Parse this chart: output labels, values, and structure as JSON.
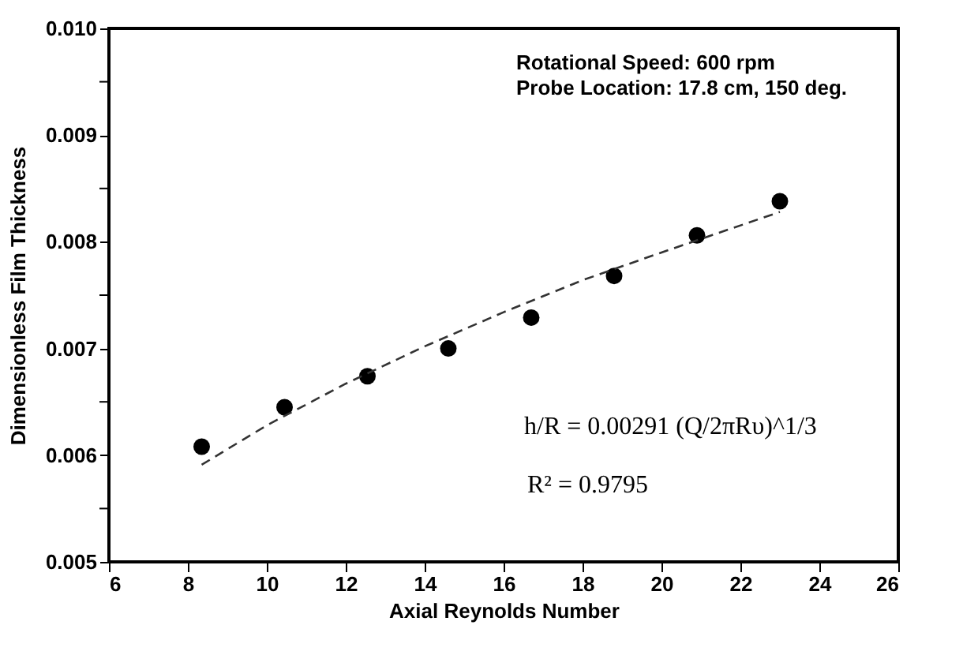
{
  "chart_data": {
    "type": "scatter",
    "xlabel": "Axial Reynolds Number",
    "ylabel": "Dimensionless Film Thickness",
    "xlim": [
      6,
      26
    ],
    "xticks": [
      6,
      8,
      10,
      12,
      14,
      16,
      18,
      20,
      22,
      24,
      26
    ],
    "ylim": [
      0.005,
      0.01
    ],
    "yticks": [
      0.005,
      {
        "value": 0.0055,
        "label": null
      },
      0.006,
      {
        "value": 0.0065,
        "label": null
      },
      0.007,
      {
        "value": 0.0075,
        "label": null
      },
      0.008,
      {
        "value": 0.0085,
        "label": null
      },
      0.009,
      {
        "value": 0.0095,
        "label": null
      },
      {
        "value": 0.01,
        "label": "0.010"
      }
    ],
    "grid": false,
    "series": [
      {
        "type": "scatter",
        "color": "#000000",
        "marker": "circle",
        "x": [
          8.35,
          10.45,
          12.55,
          14.6,
          16.7,
          18.8,
          20.9,
          23.0
        ],
        "values": [
          0.00608,
          0.00645,
          0.00674,
          0.007,
          0.00729,
          0.00768,
          0.00806,
          0.00838
        ]
      },
      {
        "type": "line",
        "color": "#333333",
        "marker": "none",
        "line_style": "dashed",
        "x": [
          8.35,
          10,
          12,
          14,
          16,
          18,
          20,
          23.0
        ],
        "values": [
          0.00591,
          0.00628,
          0.00667,
          0.00702,
          0.00734,
          0.00764,
          0.0079,
          0.00828
        ]
      }
    ],
    "annotations": [
      "Rotational Speed: 600 rpm",
      "Probe Location: 17.8 cm, 150 deg.",
      "h/R = 0.00291 (Q/2πRυ)^1/3",
      "R² = 0.9795"
    ]
  }
}
